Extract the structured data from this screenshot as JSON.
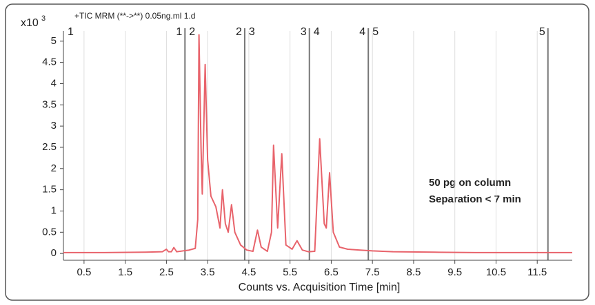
{
  "chart_data": {
    "type": "line",
    "title": "+TIC MRM (**->**) 0.05ng.ml 1.d",
    "y_axis_multiplier": "x10",
    "y_axis_exponent": "3",
    "xlabel": "Counts vs. Acquisition Time [min]",
    "annotations": [
      "50 pg on column",
      "Separation < 7 min"
    ],
    "xlim": [
      0,
      12.35
    ],
    "ylim": [
      -0.16,
      5.24
    ],
    "xticks": [
      0.5,
      1.5,
      2.5,
      3.5,
      4.5,
      5.5,
      6.5,
      7.5,
      8.5,
      9.5,
      10.5,
      11.5
    ],
    "yticks": [
      0,
      0.5,
      1,
      1.5,
      2,
      2.5,
      3,
      3.5,
      4,
      4.5,
      5
    ],
    "grid": true,
    "segments": [
      {
        "label": "1",
        "start": 0,
        "end": 2.95
      },
      {
        "label": "2",
        "start": 2.95,
        "end": 4.4
      },
      {
        "label": "3",
        "start": 4.4,
        "end": 5.97
      },
      {
        "label": "4",
        "start": 5.97,
        "end": 7.4
      },
      {
        "label": "5",
        "start": 7.4,
        "end": 11.76
      }
    ],
    "x": [
      0,
      1,
      2,
      2.4,
      2.5,
      2.55,
      2.62,
      2.68,
      2.75,
      2.9,
      3.05,
      3.2,
      3.26,
      3.29,
      3.34,
      3.37,
      3.44,
      3.5,
      3.58,
      3.7,
      3.8,
      3.86,
      3.93,
      4.0,
      4.08,
      4.16,
      4.3,
      4.45,
      4.6,
      4.71,
      4.8,
      4.95,
      5.05,
      5.1,
      5.2,
      5.3,
      5.4,
      5.55,
      5.67,
      5.8,
      5.95,
      6.1,
      6.22,
      6.33,
      6.38,
      6.46,
      6.55,
      6.7,
      6.9,
      7.2,
      7.5,
      8,
      9,
      10,
      11,
      12.35
    ],
    "series": [
      {
        "color": "#e8636b",
        "values": [
          0.02,
          0.02,
          0.03,
          0.04,
          0.1,
          0.04,
          0.04,
          0.14,
          0.04,
          0.06,
          0.08,
          0.12,
          0.8,
          5.15,
          2.5,
          1.4,
          4.45,
          2.2,
          1.35,
          1.1,
          0.6,
          1.5,
          0.7,
          0.5,
          1.15,
          0.5,
          0.2,
          0.08,
          0.05,
          0.55,
          0.15,
          0.05,
          0.5,
          2.55,
          0.6,
          2.35,
          0.2,
          0.1,
          0.3,
          0.08,
          0.04,
          0.05,
          2.7,
          0.7,
          0.6,
          1.9,
          0.5,
          0.15,
          0.1,
          0.08,
          0.06,
          0.04,
          0.03,
          0.02,
          0.02,
          0.02
        ]
      }
    ]
  }
}
